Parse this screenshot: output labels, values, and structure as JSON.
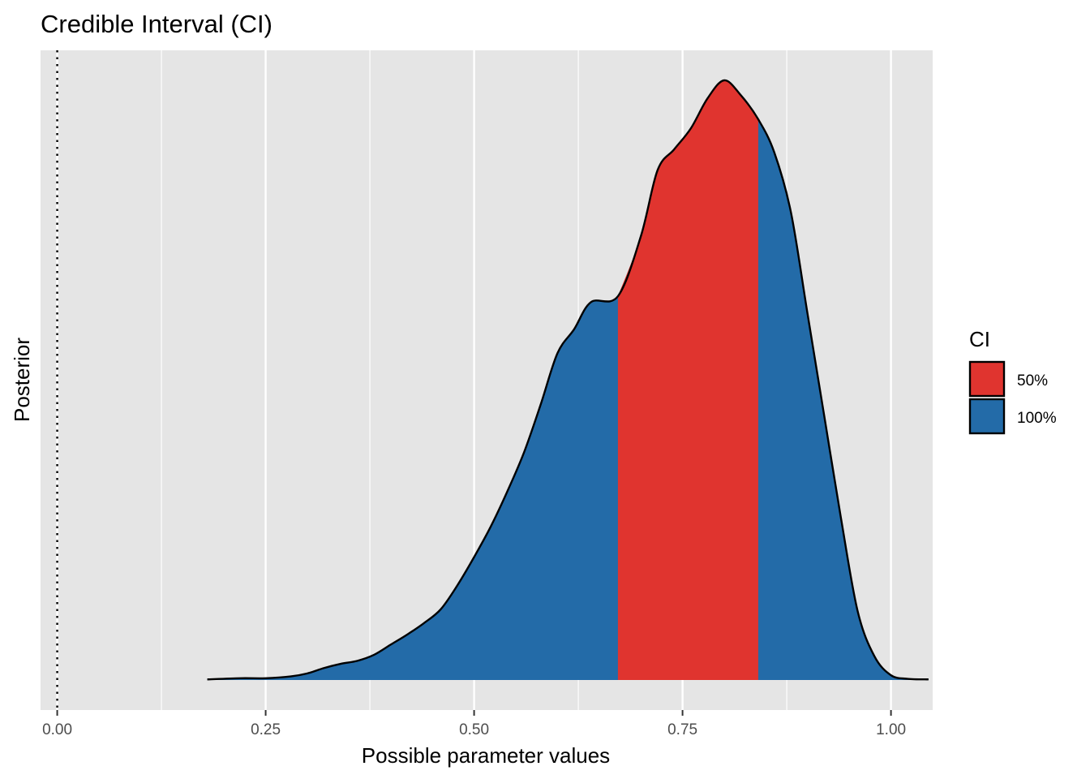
{
  "chart_data": {
    "type": "area",
    "title": "Credible Interval (CI)",
    "xlabel": "Possible parameter values",
    "ylabel": "Posterior",
    "xlim": [
      -0.02,
      1.05
    ],
    "ylim": [
      0,
      1.05
    ],
    "x_ticks": [
      0.0,
      0.25,
      0.5,
      0.75,
      1.0
    ],
    "x_tick_labels": [
      "0.00",
      "0.25",
      "0.50",
      "0.75",
      "1.00"
    ],
    "x_minor_gridlines": [
      0.125,
      0.375,
      0.625,
      0.875
    ],
    "y_ticks_shown": false,
    "grid": true,
    "reference_line": {
      "x": 0.0,
      "style": "dotted",
      "color": "#000000"
    },
    "density": {
      "x": [
        0.18,
        0.22,
        0.25,
        0.28,
        0.3,
        0.32,
        0.34,
        0.36,
        0.38,
        0.4,
        0.42,
        0.44,
        0.46,
        0.48,
        0.5,
        0.52,
        0.54,
        0.56,
        0.58,
        0.6,
        0.62,
        0.64,
        0.6725,
        0.7,
        0.72,
        0.74,
        0.76,
        0.78,
        0.8,
        0.82,
        0.8408,
        0.86,
        0.88,
        0.9,
        0.92,
        0.94,
        0.96,
        0.98,
        1.0,
        1.02,
        1.045
      ],
      "y": [
        0.001,
        0.003,
        0.003,
        0.006,
        0.011,
        0.02,
        0.027,
        0.032,
        0.042,
        0.059,
        0.076,
        0.095,
        0.118,
        0.158,
        0.205,
        0.256,
        0.315,
        0.38,
        0.46,
        0.545,
        0.585,
        0.63,
        0.64,
        0.74,
        0.85,
        0.885,
        0.92,
        0.97,
        1.0,
        0.975,
        0.935,
        0.88,
        0.78,
        0.61,
        0.44,
        0.27,
        0.115,
        0.04,
        0.008,
        0.002,
        0.001
      ]
    },
    "series": [
      {
        "name": "50%",
        "color": "#e0342f",
        "x_range": [
          0.6725,
          0.8408
        ]
      },
      {
        "name": "100%",
        "color": "#236ba8",
        "x_range": [
          0.18,
          1.045
        ]
      }
    ],
    "legend": {
      "title": "CI",
      "placement": "right"
    },
    "panel_background": "#e5e5e5",
    "gridline_color": "#ffffff"
  }
}
